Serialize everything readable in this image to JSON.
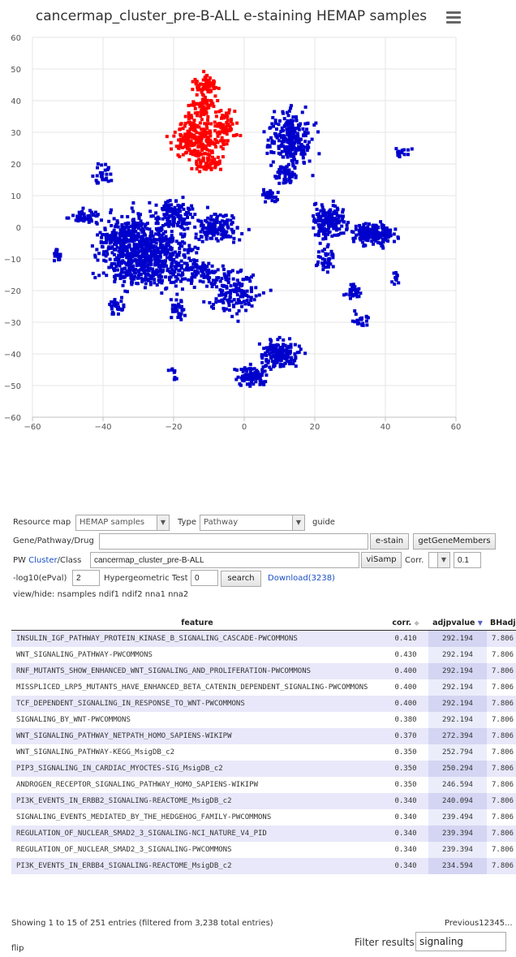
{
  "chart": {
    "title": "cancermap_cluster_pre-B-ALL e-staining HEMAP samples"
  },
  "chart_data": {
    "type": "scatter",
    "title": "cancermap_cluster_pre-B-ALL e-staining HEMAP samples",
    "xlabel": "",
    "ylabel": "",
    "xlim": [
      -60,
      60
    ],
    "ylim": [
      -60,
      60
    ],
    "x_ticks": [
      "−60",
      "−40",
      "−20",
      "0",
      "20",
      "40",
      "60"
    ],
    "y_ticks": [
      "60",
      "50",
      "40",
      "30",
      "20",
      "10",
      "0",
      "−10",
      "−20",
      "−30",
      "−40",
      "−50",
      "−60"
    ],
    "grid": true,
    "colors": {
      "highlighted": "#ff0000",
      "other": "#0000cc"
    },
    "series": [
      {
        "color": "#ff0000",
        "clusters": [
          [
            -13,
            28,
            6,
            6,
            240
          ],
          [
            -11,
            45,
            3,
            3,
            70
          ],
          [
            -12,
            38,
            3,
            3,
            60
          ],
          [
            -5,
            32,
            3,
            5,
            60
          ],
          [
            -10,
            20,
            4,
            2,
            50
          ]
        ]
      },
      {
        "color": "#0000cc",
        "clusters": [
          [
            -27,
            -10,
            11,
            8,
            650
          ],
          [
            -32,
            -2,
            8,
            6,
            200
          ],
          [
            -20,
            4,
            5,
            4,
            120
          ],
          [
            -8,
            0,
            6,
            4,
            140
          ],
          [
            -3,
            -20,
            7,
            7,
            150
          ],
          [
            10,
            -40,
            5,
            4,
            160
          ],
          [
            2,
            -47,
            4,
            3,
            90
          ],
          [
            13,
            28,
            5,
            7,
            260
          ],
          [
            12,
            17,
            3,
            3,
            60
          ],
          [
            24,
            2,
            4,
            5,
            170
          ],
          [
            37,
            -2,
            5,
            3,
            200
          ],
          [
            -45,
            3,
            4,
            2,
            50
          ],
          [
            -53,
            -9,
            1,
            2,
            20
          ],
          [
            -20,
            -47,
            1,
            2,
            10
          ],
          [
            -36,
            -25,
            2,
            2,
            30
          ],
          [
            7,
            10,
            2,
            2,
            30
          ],
          [
            31,
            -20,
            2,
            2,
            30
          ],
          [
            33,
            -29,
            2,
            2,
            20
          ],
          [
            43,
            -16,
            1,
            2,
            12
          ],
          [
            -19,
            -26,
            2,
            3,
            30
          ],
          [
            -40,
            17,
            2,
            3,
            30
          ],
          [
            -38,
            -4,
            2,
            2,
            30
          ],
          [
            45,
            23,
            2,
            2,
            15
          ],
          [
            23,
            -10,
            3,
            4,
            40
          ],
          [
            -12,
            -14,
            5,
            3,
            70
          ]
        ]
      }
    ]
  },
  "form": {
    "resource_map_label": "Resource map",
    "resource_map_value": "HEMAP samples",
    "type_label": "Type",
    "type_value": "Pathway",
    "guide_link": "guide",
    "gene_label": "Gene/Pathway/Drug",
    "gene_value": "",
    "estain_button": "e-stain",
    "getgenemembers_button": "getGeneMembers",
    "pw_label": "PW",
    "cluster_link": "Cluster",
    "class_label": "/Class",
    "cluster_value": "cancermap_cluster_pre-B-ALL",
    "visamp_button": "viSamp",
    "corr_label": "Corr.",
    "corr_select_value": "",
    "corr_value": "0.1",
    "log_label": "-log10(ePval)",
    "log_value": "2",
    "hyper_label": "Hypergeometric Test",
    "hyper_value": "0",
    "search_button": "search",
    "download_link": "Download(3238)",
    "view_hide_label": "view/hide:",
    "view_hide_items": [
      "nsamples",
      "ndif1",
      "ndif2",
      "nna1",
      "nna2"
    ]
  },
  "table": {
    "columns": [
      "feature",
      "corr.",
      "adjpvalue",
      "BHadj"
    ],
    "rows": [
      [
        "INSULIN_IGF_PATHWAY_PROTEIN_KINASE_B_SIGNALING_CASCADE-PWCOMMONS",
        "0.410",
        "292.194",
        "7.806"
      ],
      [
        "WNT_SIGNALING_PATHWAY-PWCOMMONS",
        "0.430",
        "292.194",
        "7.806"
      ],
      [
        "RNF_MUTANTS_SHOW_ENHANCED_WNT_SIGNALING_AND_PROLIFERATION-PWCOMMONS",
        "0.400",
        "292.194",
        "7.806"
      ],
      [
        "MISSPLICED_LRP5_MUTANTS_HAVE_ENHANCED_BETA_CATENIN_DEPENDENT_SIGNALING-PWCOMMONS",
        "0.400",
        "292.194",
        "7.806"
      ],
      [
        "TCF_DEPENDENT_SIGNALING_IN_RESPONSE_TO_WNT-PWCOMMONS",
        "0.400",
        "292.194",
        "7.806"
      ],
      [
        "SIGNALING_BY_WNT-PWCOMMONS",
        "0.380",
        "292.194",
        "7.806"
      ],
      [
        "WNT_SIGNALING_PATHWAY_NETPATH_HOMO_SAPIENS-WIKIPW",
        "0.370",
        "272.394",
        "7.806"
      ],
      [
        "WNT_SIGNALING_PATHWAY-KEGG_MsigDB_c2",
        "0.350",
        "252.794",
        "7.806"
      ],
      [
        "PIP3_SIGNALING_IN_CARDIAC_MYOCTES-SIG_MsigDB_c2",
        "0.350",
        "250.294",
        "7.806"
      ],
      [
        "ANDROGEN_RECEPTOR_SIGNALING_PATHWAY_HOMO_SAPIENS-WIKIPW",
        "0.350",
        "246.594",
        "7.806"
      ],
      [
        "PI3K_EVENTS_IN_ERBB2_SIGNALING-REACTOME_MsigDB_c2",
        "0.340",
        "240.094",
        "7.806"
      ],
      [
        "SIGNALING_EVENTS_MEDIATED_BY_THE_HEDGEHOG_FAMILY-PWCOMMONS",
        "0.340",
        "239.494",
        "7.806"
      ],
      [
        "REGULATION_OF_NUCLEAR_SMAD2_3_SIGNALING-NCI_NATURE_V4_PID",
        "0.340",
        "239.394",
        "7.806"
      ],
      [
        "REGULATION_OF_NUCLEAR_SMAD2_3_SIGNALING-PWCOMMONS",
        "0.340",
        "239.394",
        "7.806"
      ],
      [
        "PI3K_EVENTS_IN_ERBB4_SIGNALING-REACTOME_MsigDB_c2",
        "0.340",
        "234.594",
        "7.806"
      ]
    ]
  },
  "footer": {
    "showing": "Showing 1 to 15 of 251 entries (filtered from 3,238 total entries)",
    "pagination": "Previous12345...",
    "flip_link": "flip",
    "filter_label": "Filter results",
    "filter_value": "signaling"
  }
}
